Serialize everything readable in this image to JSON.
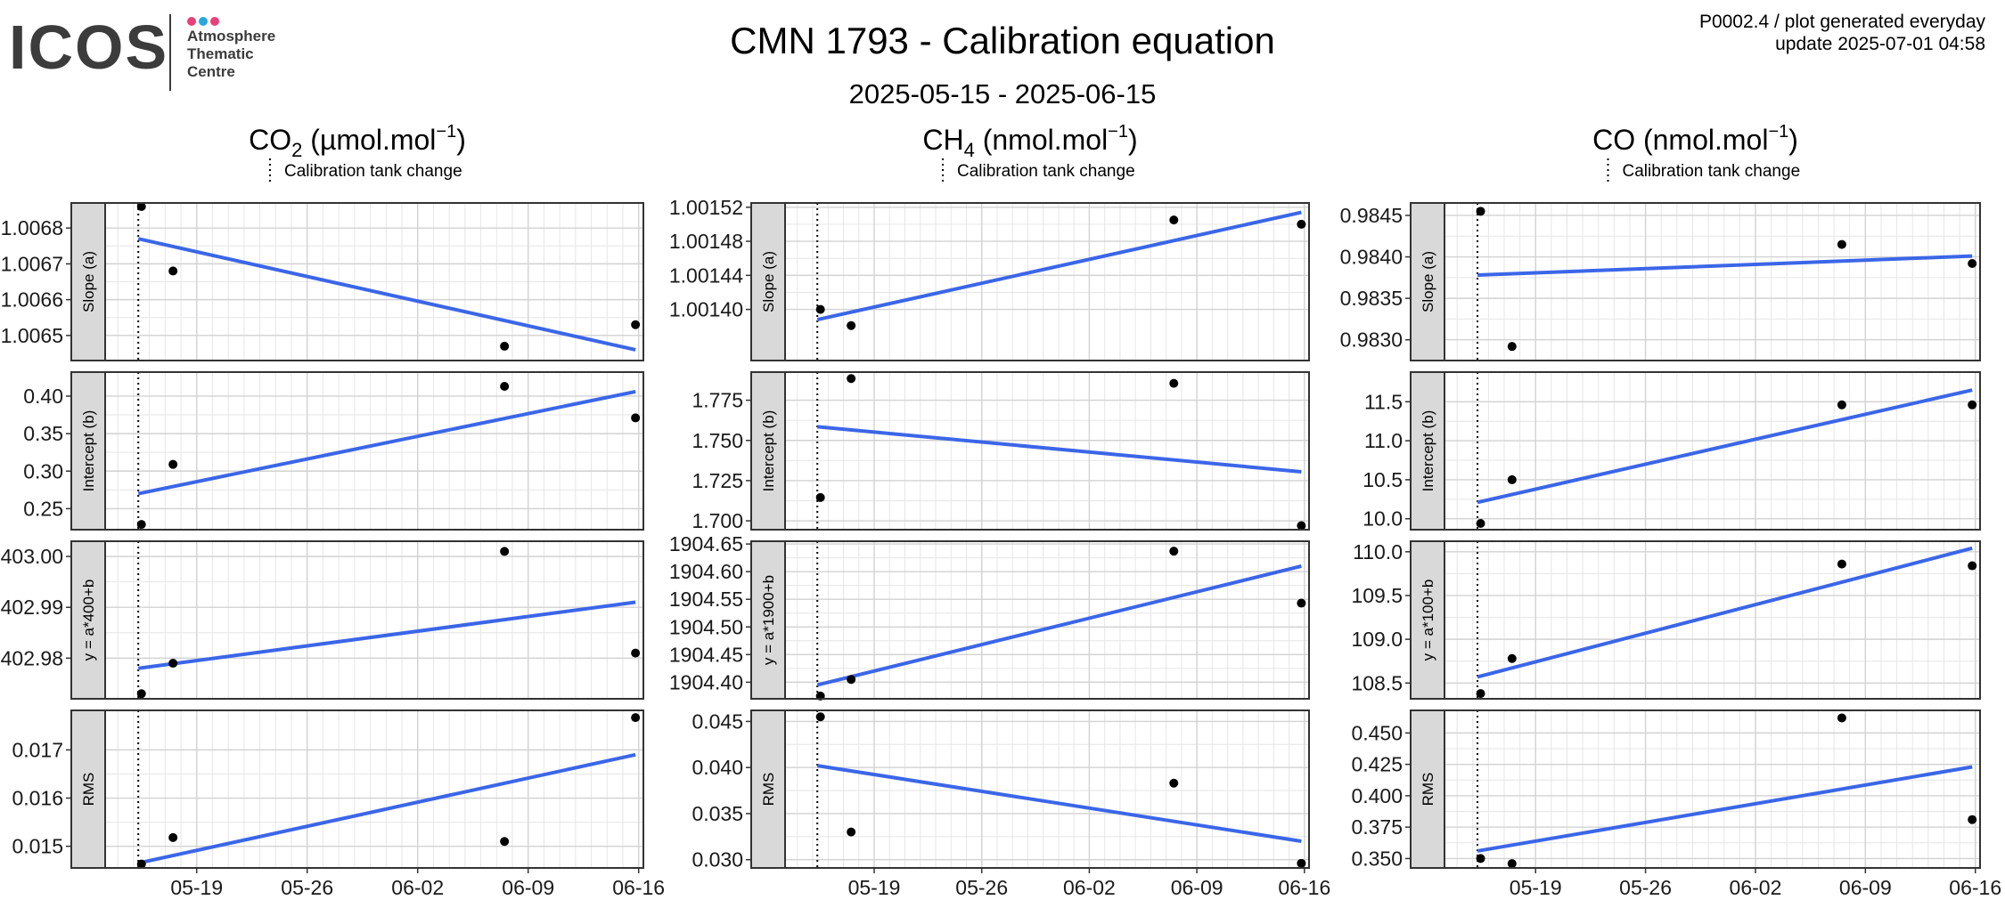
{
  "logo": {
    "wordmark": "ICOS",
    "subtitle_lines": [
      "Atmosphere",
      "Thematic",
      "Centre"
    ],
    "dot_colors": [
      "#e8407a",
      "#2aa7e0",
      "#e8407a"
    ]
  },
  "header": {
    "title": "CMN 1793 - Calibration equation",
    "subtitle": "2025-05-15 - 2025-06-15",
    "meta_line1": "P0002.4 / plot generated everyday",
    "meta_line2": "update  2025-07-01 04:58"
  },
  "colors": {
    "fit_line": "#3b66e8",
    "point": "#000000",
    "strip_bg": "#d9d9d9",
    "grid": "#e6e6e6"
  },
  "chart_data": {
    "type": "scatter",
    "x_ticks": [
      "05-19",
      "05-26",
      "06-02",
      "06-09",
      "06-16"
    ],
    "x_tick_days": [
      19,
      26,
      33,
      40,
      47
    ],
    "x_range_days": [
      13.2,
      47.3
    ],
    "tank_change_day": 15.3,
    "legend_label": "Calibration tank change",
    "columns": [
      {
        "title_pre": "CO",
        "title_sub": "2",
        "title_post": " (µmol.mol",
        "title_sup": "−1",
        "title_end": ")",
        "panels": [
          {
            "strip": "Slope (a)",
            "ylim": [
              1.00643,
              1.00687
            ],
            "ticks": [
              1.0065,
              1.0066,
              1.0067,
              1.0068
            ],
            "tick_labels": [
              "1.0065",
              "1.0066",
              "1.0067",
              "1.0068"
            ],
            "points": [
              [
                15.5,
                1.00686
              ],
              [
                17.5,
                1.00668
              ],
              [
                38.5,
                1.00647
              ],
              [
                46.8,
                1.00653
              ]
            ],
            "fit": [
              [
                15.3,
                1.00677
              ],
              [
                46.8,
                1.00646
              ]
            ]
          },
          {
            "strip": "Intercept (b)",
            "ylim": [
              0.222,
              0.432
            ],
            "ticks": [
              0.25,
              0.3,
              0.35,
              0.4
            ],
            "tick_labels": [
              "0.25",
              "0.30",
              "0.35",
              "0.40"
            ],
            "points": [
              [
                15.5,
                0.229
              ],
              [
                17.5,
                0.309
              ],
              [
                38.5,
                0.413
              ],
              [
                46.8,
                0.371
              ]
            ],
            "fit": [
              [
                15.3,
                0.27
              ],
              [
                46.8,
                0.406
              ]
            ]
          },
          {
            "strip": "y = a*400+b",
            "ylim": [
              402.972,
              403.003
            ],
            "ticks": [
              402.98,
              402.99,
              403.0
            ],
            "tick_labels": [
              "402.98",
              "402.99",
              "403.00"
            ],
            "points": [
              [
                15.5,
                402.973
              ],
              [
                17.5,
                402.979
              ],
              [
                38.5,
                403.001
              ],
              [
                46.8,
                402.981
              ]
            ],
            "fit": [
              [
                15.3,
                402.978
              ],
              [
                46.8,
                402.991
              ]
            ]
          },
          {
            "strip": "RMS",
            "ylim": [
              0.01455,
              0.01782
            ],
            "ticks": [
              0.015,
              0.016,
              0.017
            ],
            "tick_labels": [
              "0.015",
              "0.016",
              "0.017"
            ],
            "points": [
              [
                15.5,
                0.01463
              ],
              [
                17.5,
                0.01518
              ],
              [
                38.5,
                0.0151
              ],
              [
                46.8,
                0.01767
              ]
            ],
            "fit": [
              [
                15.3,
                0.01465
              ],
              [
                46.8,
                0.0169
              ]
            ]
          }
        ]
      },
      {
        "title_pre": "CH",
        "title_sub": "4",
        "title_post": " (nmol.mol",
        "title_sup": "−1",
        "title_end": ")",
        "panels": [
          {
            "strip": "Slope (a)",
            "ylim": [
              1.00134,
              1.001525
            ],
            "ticks": [
              1.0014,
              1.00144,
              1.00148,
              1.00152
            ],
            "tick_labels": [
              "1.00140",
              "1.00144",
              "1.00148",
              "1.00152"
            ],
            "points": [
              [
                15.5,
                1.0014
              ],
              [
                17.5,
                1.001381
              ],
              [
                38.5,
                1.001505
              ],
              [
                46.8,
                1.0015
              ]
            ],
            "fit": [
              [
                15.3,
                1.001388
              ],
              [
                46.8,
                1.001514
              ]
            ]
          },
          {
            "strip": "Intercept (b)",
            "ylim": [
              1.6945,
              1.7925
            ],
            "ticks": [
              1.7,
              1.725,
              1.75,
              1.775
            ],
            "tick_labels": [
              "1.700",
              "1.725",
              "1.750",
              "1.775"
            ],
            "points": [
              [
                15.5,
                1.7145
              ],
              [
                17.5,
                1.7885
              ],
              [
                38.5,
                1.7855
              ],
              [
                46.8,
                1.697
              ]
            ],
            "fit": [
              [
                15.3,
                1.7585
              ],
              [
                46.8,
                1.7305
              ]
            ]
          },
          {
            "strip": "y = a*1900+b",
            "ylim": [
              1904.37,
              1904.655
            ],
            "ticks": [
              1904.4,
              1904.45,
              1904.5,
              1904.55,
              1904.6,
              1904.65
            ],
            "tick_labels": [
              "1904.40",
              "1904.45",
              "1904.50",
              "1904.55",
              "1904.60",
              "1904.65"
            ],
            "points": [
              [
                15.5,
                1904.375
              ],
              [
                17.5,
                1904.405
              ],
              [
                38.5,
                1904.637
              ],
              [
                46.8,
                1904.543
              ]
            ],
            "fit": [
              [
                15.3,
                1904.395
              ],
              [
                46.8,
                1904.61
              ]
            ]
          },
          {
            "strip": "RMS",
            "ylim": [
              0.0291,
              0.0462
            ],
            "ticks": [
              0.03,
              0.035,
              0.04,
              0.045
            ],
            "tick_labels": [
              "0.030",
              "0.035",
              "0.040",
              "0.045"
            ],
            "points": [
              [
                15.5,
                0.0455
              ],
              [
                17.5,
                0.033
              ],
              [
                38.5,
                0.0383
              ],
              [
                46.8,
                0.0296
              ]
            ],
            "fit": [
              [
                15.3,
                0.0402
              ],
              [
                46.8,
                0.032
              ]
            ]
          }
        ]
      },
      {
        "title_pre": "CO",
        "title_sub": "",
        "title_post": " (nmol.mol",
        "title_sup": "−1",
        "title_end": ")",
        "panels": [
          {
            "strip": "Slope (a)",
            "ylim": [
              0.98275,
              0.98465
            ],
            "ticks": [
              0.983,
              0.9835,
              0.984,
              0.9845
            ],
            "tick_labels": [
              "0.9830",
              "0.9835",
              "0.9840",
              "0.9845"
            ],
            "points": [
              [
                15.5,
                0.98455
              ],
              [
                17.5,
                0.98292
              ],
              [
                38.5,
                0.98415
              ],
              [
                46.8,
                0.98392
              ]
            ],
            "fit": [
              [
                15.3,
                0.98378
              ],
              [
                46.8,
                0.98401
              ]
            ]
          },
          {
            "strip": "Intercept (b)",
            "ylim": [
              9.86,
              11.88
            ],
            "ticks": [
              10.0,
              10.5,
              11.0,
              11.5
            ],
            "tick_labels": [
              "10.0",
              "10.5",
              "11.0",
              "11.5"
            ],
            "points": [
              [
                15.5,
                9.94
              ],
              [
                17.5,
                10.5
              ],
              [
                38.5,
                11.46
              ],
              [
                46.8,
                11.46
              ]
            ],
            "fit": [
              [
                15.3,
                10.21
              ],
              [
                46.8,
                11.65
              ]
            ]
          },
          {
            "strip": "y = a*100+b",
            "ylim": [
              108.32,
              110.12
            ],
            "ticks": [
              108.5,
              109.0,
              109.5,
              110.0
            ],
            "tick_labels": [
              "108.5",
              "109.0",
              "109.5",
              "110.0"
            ],
            "points": [
              [
                15.5,
                108.38
              ],
              [
                17.5,
                108.78
              ],
              [
                38.5,
                109.86
              ],
              [
                46.8,
                109.84
              ]
            ],
            "fit": [
              [
                15.3,
                108.57
              ],
              [
                46.8,
                110.04
              ]
            ]
          },
          {
            "strip": "RMS",
            "ylim": [
              0.3425,
              0.468
            ],
            "ticks": [
              0.35,
              0.375,
              0.4,
              0.425,
              0.45
            ],
            "tick_labels": [
              "0.350",
              "0.375",
              "0.400",
              "0.425",
              "0.450"
            ],
            "points": [
              [
                15.5,
                0.35
              ],
              [
                17.5,
                0.346
              ],
              [
                38.5,
                0.462
              ],
              [
                46.8,
                0.381
              ]
            ],
            "fit": [
              [
                15.3,
                0.356
              ],
              [
                46.8,
                0.423
              ]
            ]
          }
        ]
      }
    ]
  }
}
